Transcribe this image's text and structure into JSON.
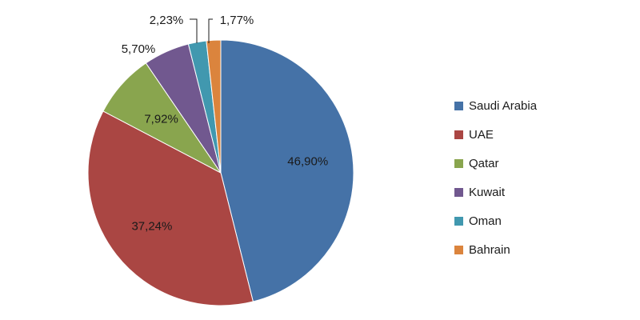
{
  "chart_data": {
    "type": "pie",
    "categories": [
      "Saudi Arabia",
      "UAE",
      "Qatar",
      "Kuwait",
      "Oman",
      "Bahrain"
    ],
    "values": [
      46.9,
      37.24,
      7.92,
      5.7,
      2.23,
      1.77
    ],
    "data_labels": [
      "46,90%",
      "37,24%",
      "7,92%",
      "5,70%",
      "2,23%",
      "1,77%"
    ],
    "colors": [
      "#4572A7",
      "#AA4643",
      "#89A54E",
      "#71588F",
      "#4198AF",
      "#DB843D"
    ],
    "legend": {
      "position": "right",
      "entries": [
        "Saudi Arabia",
        "UAE",
        "Qatar",
        "Kuwait",
        "Oman",
        "Bahrain"
      ]
    },
    "start_angle": "12 o'clock",
    "direction": "clockwise"
  }
}
